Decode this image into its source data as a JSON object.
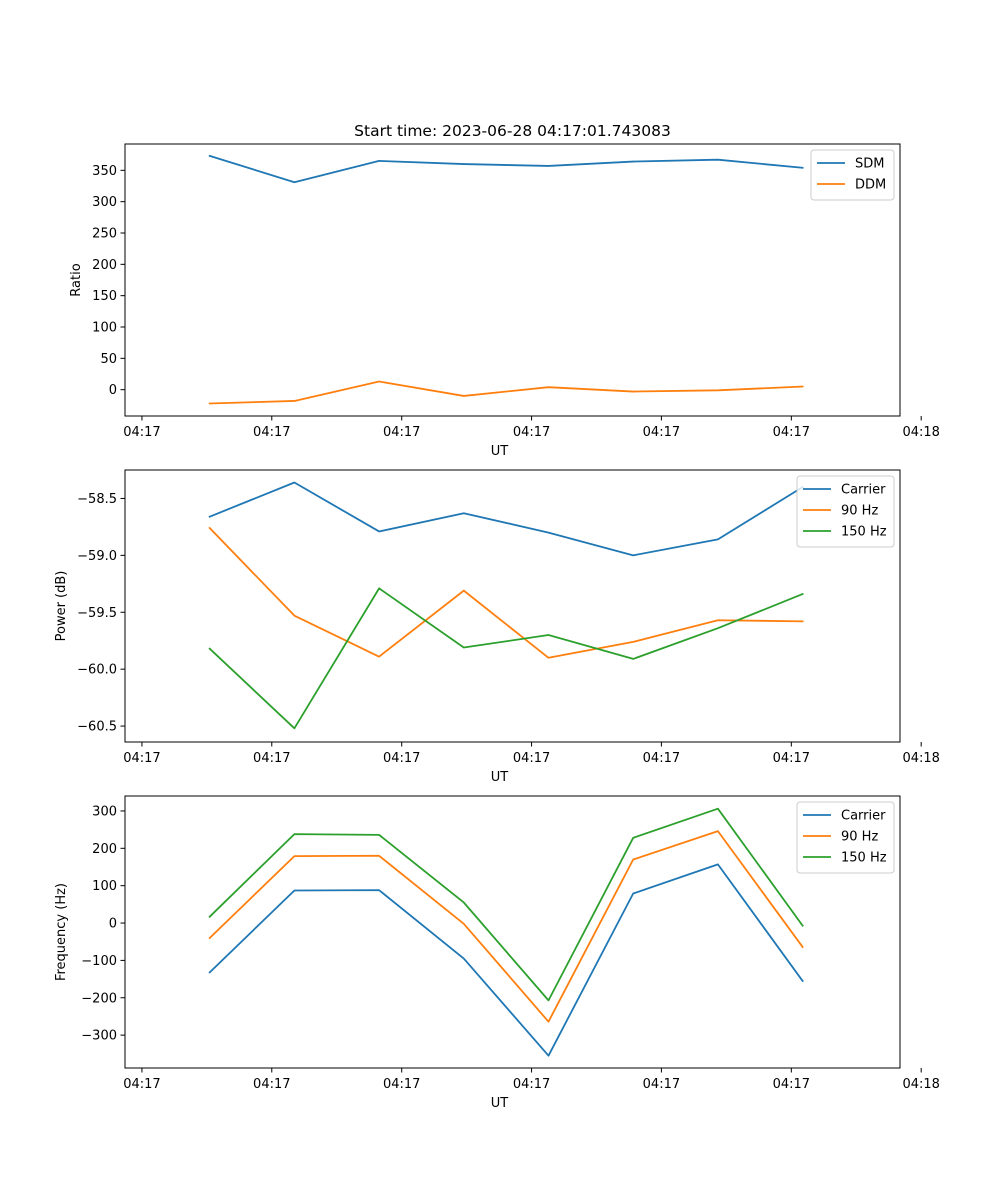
{
  "chart_data": [
    {
      "type": "line",
      "title": "Start time: 2023-06-28 04:17:01.743083",
      "xlabel": "UT",
      "ylabel": "Ratio",
      "xtick_labels": [
        "04:17",
        "04:17",
        "04:17",
        "04:17",
        "04:17",
        "04:17",
        "04:18"
      ],
      "xlim": [
        0,
        9.15
      ],
      "ylim": [
        -42,
        392
      ],
      "yticks": [
        0,
        50,
        100,
        150,
        200,
        250,
        300,
        350
      ],
      "ytick_labels": [
        "0",
        "50",
        "100",
        "150",
        "200",
        "250",
        "300",
        "350"
      ],
      "x": [
        1.0,
        2.0,
        3.0,
        4.0,
        5.0,
        6.0,
        7.0,
        8.0
      ],
      "series": [
        {
          "name": "SDM",
          "color": "#1f77b4",
          "values": [
            373,
            331,
            365,
            360,
            357,
            364,
            367,
            354
          ]
        },
        {
          "name": "DDM",
          "color": "#ff7f0e",
          "values": [
            -22,
            -18,
            13,
            -10,
            4,
            -3,
            -1,
            5
          ]
        }
      ],
      "legend": "upper right"
    },
    {
      "type": "line",
      "title": "",
      "xlabel": "UT",
      "ylabel": "Power (dB)",
      "xtick_labels": [
        "04:17",
        "04:17",
        "04:17",
        "04:17",
        "04:17",
        "04:17",
        "04:18"
      ],
      "xlim": [
        0,
        9.15
      ],
      "ylim": [
        -60.64,
        -58.25
      ],
      "yticks": [
        -60.5,
        -60.0,
        -59.5,
        -59.0,
        -58.5
      ],
      "ytick_labels": [
        "−60.5",
        "−60.0",
        "−59.5",
        "−59.0",
        "−58.5"
      ],
      "x": [
        1.0,
        2.0,
        3.0,
        4.0,
        5.0,
        6.0,
        7.0,
        8.0
      ],
      "series": [
        {
          "name": "Carrier",
          "color": "#1f77b4",
          "values": [
            -58.66,
            -58.36,
            -58.79,
            -58.63,
            -58.8,
            -59.0,
            -58.86,
            -58.4
          ]
        },
        {
          "name": "90 Hz",
          "color": "#ff7f0e",
          "values": [
            -58.76,
            -59.53,
            -59.89,
            -59.31,
            -59.9,
            -59.76,
            -59.57,
            -59.58
          ]
        },
        {
          "name": "150 Hz",
          "color": "#2ca02c",
          "values": [
            -59.82,
            -60.52,
            -59.29,
            -59.81,
            -59.7,
            -59.91,
            -59.64,
            -59.34
          ]
        }
      ],
      "legend": "upper right"
    },
    {
      "type": "line",
      "title": "",
      "xlabel": "UT",
      "ylabel": "Frequency (Hz)",
      "xtick_labels": [
        "04:17",
        "04:17",
        "04:17",
        "04:17",
        "04:17",
        "04:17",
        "04:18"
      ],
      "xlim": [
        0,
        9.15
      ],
      "ylim": [
        -388,
        340
      ],
      "yticks": [
        -300,
        -200,
        -100,
        0,
        100,
        200,
        300
      ],
      "ytick_labels": [
        "−300",
        "−200",
        "−100",
        "0",
        "100",
        "200",
        "300"
      ],
      "x": [
        1.0,
        2.0,
        3.0,
        4.0,
        5.0,
        6.0,
        7.0,
        8.0
      ],
      "series": [
        {
          "name": "Carrier",
          "color": "#1f77b4",
          "values": [
            -132,
            87,
            88,
            -95,
            -355,
            79,
            157,
            -155
          ]
        },
        {
          "name": "90 Hz",
          "color": "#ff7f0e",
          "values": [
            -40,
            179,
            180,
            -2,
            -264,
            170,
            246,
            -64
          ]
        },
        {
          "name": "150 Hz",
          "color": "#2ca02c",
          "values": [
            17,
            238,
            236,
            55,
            -207,
            228,
            306,
            -7
          ]
        }
      ],
      "legend": "upper right"
    }
  ]
}
